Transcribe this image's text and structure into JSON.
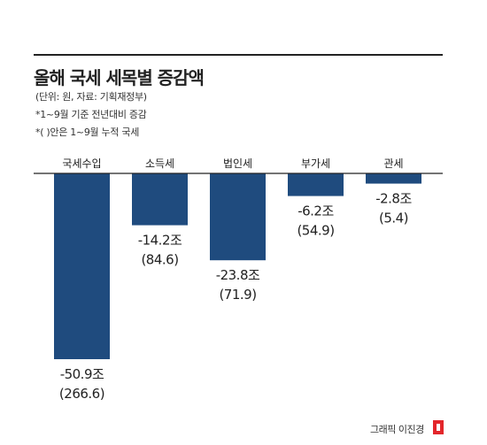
{
  "header": {
    "title": "올해 국세 세목별 증감액",
    "unit_note": "(단위: 원, 자료: 기획재정부)",
    "note_1": "*1~9월 기준 전년대비 증감",
    "note_2": "*(   )안은 1~9월 누적 국세"
  },
  "chart_data": {
    "type": "bar",
    "title": "올해 국세 세목별 증감액",
    "categories": [
      "국세수입",
      "소득세",
      "법인세",
      "부가세",
      "관세"
    ],
    "values": [
      -50.9,
      -14.2,
      -23.8,
      -6.2,
      -2.8
    ],
    "value_labels": [
      "-50.9조",
      "-14.2조",
      "-23.8조",
      "-6.2조",
      "-2.8조"
    ],
    "cumulative_labels": [
      "(266.6)",
      "(84.6)",
      "(71.9)",
      "(54.9)",
      "(5.4)"
    ],
    "cumulative_values": [
      266.6,
      84.6,
      71.9,
      54.9,
      5.4
    ],
    "unit": "조",
    "ylim": [
      -50.9,
      0
    ],
    "bar_color": "#1f4b7e",
    "legend": "none",
    "grid": false
  },
  "credit": "그래픽 이진경",
  "colors": {
    "bar": "#1f4b7e",
    "logo": "#e3262b",
    "text": "#222222"
  }
}
